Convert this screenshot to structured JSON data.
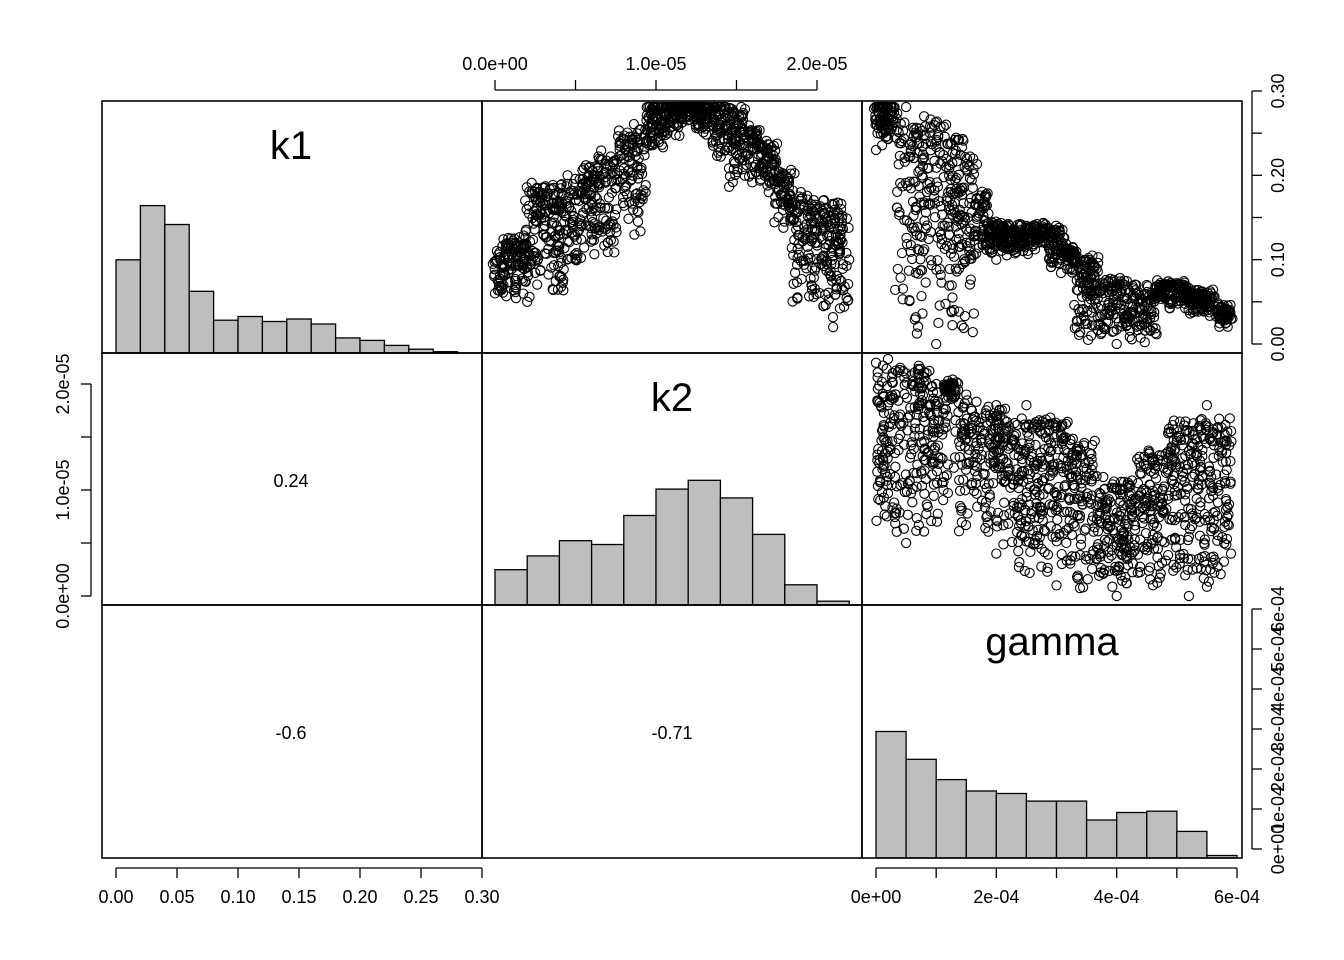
{
  "chart_data": {
    "type": "scatter",
    "variables": [
      "k1",
      "k2",
      "gamma"
    ],
    "ranges": {
      "k1": [
        0.0,
        0.3
      ],
      "k2": [
        0.0,
        2.3e-05
      ],
      "gamma": [
        0.0,
        0.0006
      ]
    },
    "ticks": {
      "k1": {
        "values": [
          0.0,
          0.05,
          0.1,
          0.15,
          0.2,
          0.25,
          0.3
        ],
        "labels": [
          "0.00",
          "0.05",
          "0.10",
          "0.15",
          "0.20",
          "0.25",
          "0.30"
        ]
      },
      "k1_right": {
        "values": [
          0.0,
          0.05,
          0.1,
          0.15,
          0.2,
          0.25,
          0.3
        ],
        "labels": [
          "0.00",
          "",
          "0.10",
          "",
          "0.20",
          "",
          "0.30"
        ]
      },
      "k2": {
        "values": [
          0.0,
          5e-06,
          1e-05,
          1.5e-05,
          2e-05
        ],
        "labels": [
          "0.0e+00",
          "",
          "1.0e-05",
          "",
          "2.0e-05"
        ]
      },
      "gamma": {
        "values": [
          0.0,
          0.0001,
          0.0002,
          0.0003,
          0.0004,
          0.0005,
          0.0006
        ],
        "labels": [
          "0e+00",
          "",
          "2e-04",
          "",
          "4e-04",
          "",
          "6e-04"
        ]
      },
      "gamma_right": {
        "values": [
          0.0,
          0.0001,
          0.0002,
          0.0003,
          0.0004,
          0.0005,
          0.0006
        ],
        "labels": [
          "0e+00",
          "1e-04",
          "2e-04",
          "3e-04",
          "4e-04",
          "5e-04",
          "6e-04"
        ]
      }
    },
    "histograms": {
      "k1": {
        "breaks": [
          0.0,
          0.02,
          0.04,
          0.06,
          0.08,
          0.1,
          0.12,
          0.14,
          0.16,
          0.18,
          0.2,
          0.22,
          0.24,
          0.26,
          0.28
        ],
        "counts": [
          0.37,
          0.585,
          0.51,
          0.245,
          0.13,
          0.145,
          0.125,
          0.135,
          0.115,
          0.06,
          0.05,
          0.03,
          0.015,
          0.005
        ]
      },
      "k2": {
        "breaks": [
          0.0,
          2e-06,
          4e-06,
          6e-06,
          8e-06,
          1e-05,
          1.2e-05,
          1.4e-05,
          1.6e-05,
          1.8e-05,
          2e-05,
          2.2e-05
        ],
        "counts": [
          0.14,
          0.195,
          0.255,
          0.24,
          0.355,
          0.46,
          0.495,
          0.425,
          0.28,
          0.08,
          0.015
        ]
      },
      "gamma": {
        "breaks": [
          0.0,
          5e-05,
          0.0001,
          0.00015,
          0.0002,
          0.00025,
          0.0003,
          0.00035,
          0.0004,
          0.00045,
          0.0005,
          0.00055,
          0.0006
        ],
        "counts": [
          0.5,
          0.39,
          0.31,
          0.265,
          0.255,
          0.225,
          0.225,
          0.15,
          0.18,
          0.185,
          0.105,
          0.01
        ]
      }
    },
    "correlations": [
      {
        "row": "k2",
        "col": "k1",
        "value": "0.24"
      },
      {
        "row": "gamma",
        "col": "k1",
        "value": "-0.6"
      },
      {
        "row": "gamma",
        "col": "k2",
        "value": "-0.71"
      }
    ],
    "scatter": [
      {
        "x": "k2",
        "y": "k1",
        "approx_points": [
          [
            0.0,
            0.06
          ],
          [
            5e-07,
            0.09
          ],
          [
            1e-06,
            0.12
          ],
          [
            2e-06,
            0.05
          ],
          [
            3e-06,
            0.13
          ],
          [
            4e-06,
            0.08
          ],
          [
            5e-06,
            0.1
          ],
          [
            6e-06,
            0.13
          ],
          [
            7e-06,
            0.12
          ],
          [
            8e-06,
            0.22
          ],
          [
            9e-06,
            0.24
          ],
          [
            1e-05,
            0.26
          ],
          [
            1.1e-05,
            0.27
          ],
          [
            1.2e-05,
            0.29
          ],
          [
            1.3e-05,
            0.29
          ],
          [
            1.4e-05,
            0.26
          ],
          [
            1.5e-05,
            0.24
          ],
          [
            1.6e-05,
            0.21
          ],
          [
            1.7e-05,
            0.18
          ],
          [
            1.8e-05,
            0.19
          ],
          [
            1.9e-05,
            0.18
          ],
          [
            2e-05,
            0.12
          ],
          [
            2.1e-05,
            0.02
          ],
          [
            2.2e-05,
            0.1
          ],
          [
            4.5e-06,
            0.2
          ],
          [
            2.15e-05,
            0.16
          ]
        ]
      },
      {
        "x": "gamma",
        "y": "k1",
        "approx_points": [
          [
            0.0,
            0.23
          ],
          [
            2e-05,
            0.26
          ],
          [
            5e-05,
            0.29
          ],
          [
            8e-05,
            0.27
          ],
          [
            0.0001,
            0.24
          ],
          [
            0.00012,
            0.18
          ],
          [
            0.00015,
            0.12
          ],
          [
            0.0002,
            0.1
          ],
          [
            0.00025,
            0.14
          ],
          [
            0.0003,
            0.11
          ],
          [
            0.00035,
            0.08
          ],
          [
            0.0004,
            0.06
          ],
          [
            0.00045,
            0.07
          ],
          [
            0.0005,
            0.06
          ],
          [
            0.00055,
            0.04
          ],
          [
            0.00059,
            0.03
          ],
          [
            0.0001,
            0.0
          ],
          [
            0.0004,
            0.0
          ]
        ]
      },
      {
        "x": "gamma",
        "y": "k2",
        "approx_points": [
          [
            0.0,
            2.2e-05
          ],
          [
            2e-05,
            2.3e-05
          ],
          [
            5e-05,
            2.1e-05
          ],
          [
            0.0001,
            2e-05
          ],
          [
            0.00015,
            1.9e-05
          ],
          [
            0.0002,
            1.8e-05
          ],
          [
            0.00025,
            1.8e-05
          ],
          [
            0.0003,
            1.6e-05
          ],
          [
            0.00035,
            1.2e-05
          ],
          [
            0.0004,
            1e-05
          ],
          [
            0.00045,
            1.2e-05
          ],
          [
            0.0005,
            1.5e-05
          ],
          [
            0.00055,
            1.8e-05
          ],
          [
            0.00058,
            7e-06
          ],
          [
            0.00059,
            4e-06
          ],
          [
            0.0003,
            1e-06
          ],
          [
            0.0004,
            0.0
          ],
          [
            0.00052,
            0.0
          ],
          [
            0.0002,
            4e-06
          ],
          [
            5e-05,
            5e-06
          ]
        ]
      }
    ]
  }
}
